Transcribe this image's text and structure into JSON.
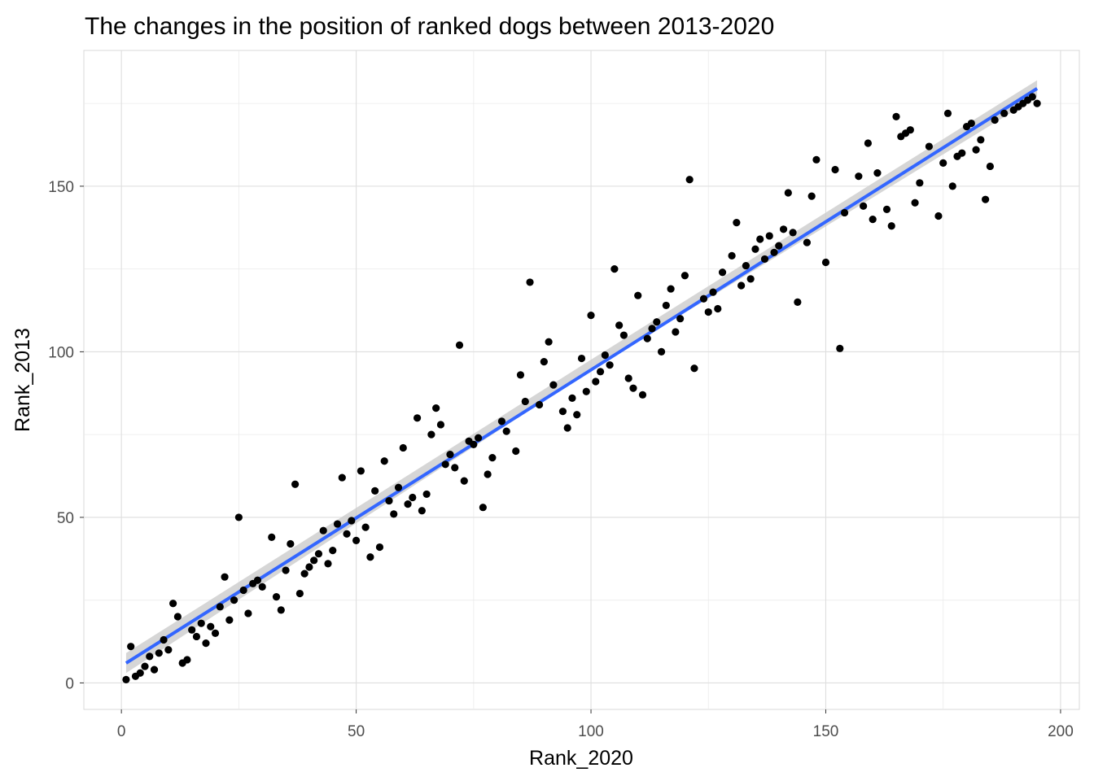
{
  "chart_data": {
    "type": "scatter",
    "title": "The changes in the position of ranked dogs between 2013-2020",
    "xlabel": "Rank_2020",
    "ylabel": "Rank_2013",
    "xlim": [
      -8,
      204
    ],
    "ylim": [
      -8,
      191
    ],
    "x_ticks": [
      {
        "value": 0,
        "label": "0"
      },
      {
        "value": 50,
        "label": "50"
      },
      {
        "value": 100,
        "label": "100"
      },
      {
        "value": 150,
        "label": "150"
      },
      {
        "value": 200,
        "label": "200"
      }
    ],
    "y_ticks": [
      {
        "value": 0,
        "label": "0"
      },
      {
        "value": 50,
        "label": "50"
      },
      {
        "value": 100,
        "label": "100"
      },
      {
        "value": 150,
        "label": "150"
      }
    ],
    "grid": true,
    "point_color": "#000000",
    "trend_color": "#3366ff",
    "band_color": "#cccccc",
    "trend_line": {
      "x": [
        1,
        195
      ],
      "y": [
        6,
        179.5
      ]
    },
    "confidence_band": {
      "x": [
        1,
        100,
        195
      ],
      "lower": [
        3,
        94.4,
        177
      ],
      "upper": [
        9,
        97.6,
        182
      ]
    },
    "points": [
      [
        1,
        1
      ],
      [
        2,
        11
      ],
      [
        3,
        2
      ],
      [
        4,
        3
      ],
      [
        5,
        5
      ],
      [
        6,
        8
      ],
      [
        7,
        4
      ],
      [
        8,
        9
      ],
      [
        9,
        13
      ],
      [
        10,
        10
      ],
      [
        11,
        24
      ],
      [
        12,
        20
      ],
      [
        13,
        6
      ],
      [
        14,
        7
      ],
      [
        15,
        16
      ],
      [
        16,
        14
      ],
      [
        17,
        18
      ],
      [
        18,
        12
      ],
      [
        19,
        17
      ],
      [
        20,
        15
      ],
      [
        21,
        23
      ],
      [
        22,
        32
      ],
      [
        23,
        19
      ],
      [
        24,
        25
      ],
      [
        25,
        50
      ],
      [
        26,
        28
      ],
      [
        27,
        21
      ],
      [
        28,
        30
      ],
      [
        29,
        31
      ],
      [
        30,
        29
      ],
      [
        32,
        44
      ],
      [
        33,
        26
      ],
      [
        34,
        22
      ],
      [
        35,
        34
      ],
      [
        36,
        42
      ],
      [
        37,
        60
      ],
      [
        38,
        27
      ],
      [
        39,
        33
      ],
      [
        40,
        35
      ],
      [
        41,
        37
      ],
      [
        42,
        39
      ],
      [
        43,
        46
      ],
      [
        44,
        36
      ],
      [
        45,
        40
      ],
      [
        46,
        48
      ],
      [
        47,
        62
      ],
      [
        48,
        45
      ],
      [
        49,
        49
      ],
      [
        50,
        43
      ],
      [
        51,
        64
      ],
      [
        52,
        47
      ],
      [
        53,
        38
      ],
      [
        54,
        58
      ],
      [
        55,
        41
      ],
      [
        56,
        67
      ],
      [
        57,
        55
      ],
      [
        58,
        51
      ],
      [
        59,
        59
      ],
      [
        60,
        71
      ],
      [
        61,
        54
      ],
      [
        62,
        56
      ],
      [
        63,
        80
      ],
      [
        64,
        52
      ],
      [
        65,
        57
      ],
      [
        66,
        75
      ],
      [
        67,
        83
      ],
      [
        68,
        78
      ],
      [
        69,
        66
      ],
      [
        70,
        69
      ],
      [
        71,
        65
      ],
      [
        72,
        102
      ],
      [
        73,
        61
      ],
      [
        74,
        73
      ],
      [
        75,
        72
      ],
      [
        76,
        74
      ],
      [
        77,
        53
      ],
      [
        78,
        63
      ],
      [
        79,
        68
      ],
      [
        81,
        79
      ],
      [
        82,
        76
      ],
      [
        84,
        70
      ],
      [
        85,
        93
      ],
      [
        86,
        85
      ],
      [
        87,
        121
      ],
      [
        89,
        84
      ],
      [
        90,
        97
      ],
      [
        91,
        103
      ],
      [
        92,
        90
      ],
      [
        94,
        82
      ],
      [
        95,
        77
      ],
      [
        96,
        86
      ],
      [
        97,
        81
      ],
      [
        98,
        98
      ],
      [
        99,
        88
      ],
      [
        100,
        111
      ],
      [
        101,
        91
      ],
      [
        102,
        94
      ],
      [
        103,
        99
      ],
      [
        104,
        96
      ],
      [
        105,
        125
      ],
      [
        106,
        108
      ],
      [
        107,
        105
      ],
      [
        108,
        92
      ],
      [
        109,
        89
      ],
      [
        110,
        117
      ],
      [
        111,
        87
      ],
      [
        112,
        104
      ],
      [
        113,
        107
      ],
      [
        114,
        109
      ],
      [
        115,
        100
      ],
      [
        116,
        114
      ],
      [
        117,
        119
      ],
      [
        118,
        106
      ],
      [
        119,
        110
      ],
      [
        120,
        123
      ],
      [
        121,
        152
      ],
      [
        122,
        95
      ],
      [
        124,
        116
      ],
      [
        125,
        112
      ],
      [
        126,
        118
      ],
      [
        127,
        113
      ],
      [
        128,
        124
      ],
      [
        130,
        129
      ],
      [
        131,
        139
      ],
      [
        132,
        120
      ],
      [
        133,
        126
      ],
      [
        134,
        122
      ],
      [
        135,
        131
      ],
      [
        136,
        134
      ],
      [
        137,
        128
      ],
      [
        138,
        135
      ],
      [
        139,
        130
      ],
      [
        140,
        132
      ],
      [
        141,
        137
      ],
      [
        142,
        148
      ],
      [
        143,
        136
      ],
      [
        144,
        115
      ],
      [
        146,
        133
      ],
      [
        147,
        147
      ],
      [
        148,
        158
      ],
      [
        150,
        127
      ],
      [
        152,
        155
      ],
      [
        153,
        101
      ],
      [
        154,
        142
      ],
      [
        157,
        153
      ],
      [
        158,
        144
      ],
      [
        159,
        163
      ],
      [
        160,
        140
      ],
      [
        161,
        154
      ],
      [
        163,
        143
      ],
      [
        164,
        138
      ],
      [
        165,
        171
      ],
      [
        166,
        165
      ],
      [
        167,
        166
      ],
      [
        168,
        167
      ],
      [
        169,
        145
      ],
      [
        170,
        151
      ],
      [
        172,
        162
      ],
      [
        174,
        141
      ],
      [
        175,
        157
      ],
      [
        176,
        172
      ],
      [
        177,
        150
      ],
      [
        178,
        159
      ],
      [
        179,
        160
      ],
      [
        180,
        168
      ],
      [
        181,
        169
      ],
      [
        182,
        161
      ],
      [
        183,
        164
      ],
      [
        184,
        146
      ],
      [
        185,
        156
      ],
      [
        186,
        170
      ],
      [
        188,
        172
      ],
      [
        190,
        173
      ],
      [
        191,
        174
      ],
      [
        192,
        175
      ],
      [
        193,
        176
      ],
      [
        194,
        177
      ],
      [
        195,
        175
      ]
    ]
  }
}
